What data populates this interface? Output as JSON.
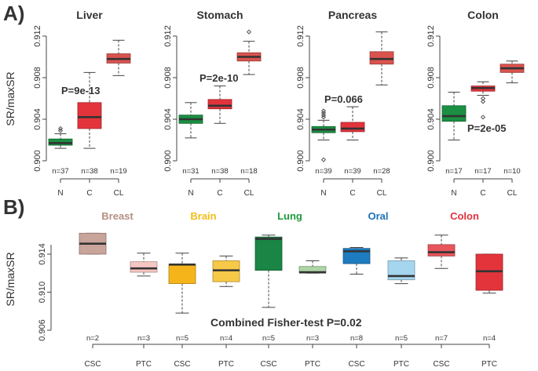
{
  "labels": {
    "panelA": "A)",
    "panelB": "B)",
    "ylabel": "SR/maxSR"
  },
  "colors": {
    "N": "#1b8f43",
    "C": "#e3343c",
    "CL": "#d9534f"
  },
  "chart_data": [
    {
      "type": "box",
      "panel": "A",
      "title": "Liver",
      "ylim": [
        0.9,
        0.914
      ],
      "yticks": [
        "0.900",
        "0.904",
        "0.908",
        "0.912"
      ],
      "pvalue": "P=9e-13",
      "categories": [
        "N",
        "C",
        "CL"
      ],
      "n_labels": [
        "n=37",
        "n=38",
        "n=19"
      ],
      "boxes": [
        {
          "min": 0.9012,
          "q1": 0.9015,
          "median": 0.9017,
          "q3": 0.9021,
          "max": 0.9026,
          "outliers": [
            0.9029,
            0.9031
          ]
        },
        {
          "min": 0.9012,
          "q1": 0.9031,
          "median": 0.9042,
          "q3": 0.9056,
          "max": 0.9085,
          "outliers": []
        },
        {
          "min": 0.9082,
          "q1": 0.9094,
          "median": 0.9098,
          "q3": 0.9103,
          "max": 0.9116,
          "outliers": []
        }
      ]
    },
    {
      "type": "box",
      "panel": "A",
      "title": "Stomach",
      "ylim": [
        0.9,
        0.914
      ],
      "yticks": [
        "0.900",
        "0.904",
        "0.908",
        "0.912"
      ],
      "pvalue": "P=2e-10",
      "categories": [
        "N",
        "C",
        "CL"
      ],
      "n_labels": [
        "n=31",
        "n=38",
        "n=18"
      ],
      "boxes": [
        {
          "min": 0.9022,
          "q1": 0.9036,
          "median": 0.904,
          "q3": 0.9044,
          "max": 0.9056,
          "outliers": []
        },
        {
          "min": 0.9036,
          "q1": 0.905,
          "median": 0.9053,
          "q3": 0.9059,
          "max": 0.9072,
          "outliers": []
        },
        {
          "min": 0.9083,
          "q1": 0.9096,
          "median": 0.91,
          "q3": 0.9104,
          "max": 0.9115,
          "outliers": [
            0.9124
          ]
        }
      ]
    },
    {
      "type": "box",
      "panel": "A",
      "title": "Pancreas",
      "ylim": [
        0.9,
        0.914
      ],
      "yticks": [
        "0.900",
        "0.904",
        "0.908",
        "0.912"
      ],
      "pvalue": "P=0.066",
      "categories": [
        "N",
        "C",
        "CL"
      ],
      "n_labels": [
        "n=39",
        "n=39",
        "n=28"
      ],
      "boxes": [
        {
          "min": 0.902,
          "q1": 0.9027,
          "median": 0.903,
          "q3": 0.9033,
          "max": 0.9039,
          "outliers": [
            0.9042,
            0.9044,
            0.9046,
            0.9048,
            0.9001
          ]
        },
        {
          "min": 0.902,
          "q1": 0.9028,
          "median": 0.9031,
          "q3": 0.9037,
          "max": 0.9052,
          "outliers": []
        },
        {
          "min": 0.9073,
          "q1": 0.9093,
          "median": 0.9098,
          "q3": 0.9105,
          "max": 0.9124,
          "outliers": []
        }
      ]
    },
    {
      "type": "box",
      "panel": "A",
      "title": "Colon",
      "ylim": [
        0.9,
        0.914
      ],
      "yticks": [
        "0.900",
        "0.904",
        "0.908",
        "0.912"
      ],
      "pvalue": "P=2e-05",
      "categories": [
        "N",
        "C",
        "CL"
      ],
      "n_labels": [
        "n=17",
        "n=17",
        "n=10"
      ],
      "boxes": [
        {
          "min": 0.902,
          "q1": 0.9038,
          "median": 0.9043,
          "q3": 0.9053,
          "max": 0.9066,
          "outliers": []
        },
        {
          "min": 0.9063,
          "q1": 0.9067,
          "median": 0.907,
          "q3": 0.9072,
          "max": 0.9076,
          "outliers": [
            0.906,
            0.9057,
            0.9042
          ]
        },
        {
          "min": 0.9075,
          "q1": 0.9085,
          "median": 0.9089,
          "q3": 0.9093,
          "max": 0.9096,
          "outliers": []
        }
      ]
    },
    {
      "type": "box",
      "panel": "B",
      "ylim": [
        0.906,
        0.9172
      ],
      "yticks": [
        "0.906",
        "0.910",
        "0.914"
      ],
      "annotation": "Combined Fisher-test P=0.02",
      "groups": [
        {
          "name": "Breast",
          "color": "#b58e84",
          "colors": [
            "#c9a49a",
            "#f6c6c2"
          ]
        },
        {
          "name": "Brain",
          "color": "#f2bd16",
          "colors": [
            "#f5b51a",
            "#f7c948"
          ]
        },
        {
          "name": "Lung",
          "color": "#1f9a3c",
          "colors": [
            "#1a8545",
            "#acd5a5"
          ]
        },
        {
          "name": "Oral",
          "color": "#1b72b8",
          "colors": [
            "#1d7bbf",
            "#a6d6ef"
          ]
        },
        {
          "name": "Colon",
          "color": "#e2333d",
          "colors": [
            "#e8555c",
            "#e3343c"
          ]
        }
      ],
      "categories": [
        "CSC",
        "PTC",
        "CSC",
        "PTC",
        "CSC",
        "PTC",
        "CSC",
        "PTC",
        "CSC",
        "PTC"
      ],
      "n_labels": [
        "n=2",
        "n=3",
        "n=5",
        "n=4",
        "n=5",
        "n=3",
        "n=8",
        "n=5",
        "n=7",
        "n=4"
      ],
      "boxes": [
        {
          "min": 0.914,
          "q1": 0.914,
          "median": 0.9151,
          "q3": 0.9162,
          "max": 0.9162
        },
        {
          "min": 0.9117,
          "q1": 0.9121,
          "median": 0.9125,
          "q3": 0.9132,
          "max": 0.9141
        },
        {
          "min": 0.9078,
          "q1": 0.9109,
          "median": 0.9129,
          "q3": 0.9129,
          "max": 0.9141
        },
        {
          "min": 0.9106,
          "q1": 0.9111,
          "median": 0.9123,
          "q3": 0.9133,
          "max": 0.9138
        },
        {
          "min": 0.9084,
          "q1": 0.9123,
          "median": 0.9156,
          "q3": 0.9158,
          "max": 0.916
        },
        {
          "min": 0.912,
          "q1": 0.912,
          "median": 0.9121,
          "q3": 0.9127,
          "max": 0.9133
        },
        {
          "min": 0.9119,
          "q1": 0.913,
          "median": 0.9143,
          "q3": 0.9146,
          "max": 0.9147
        },
        {
          "min": 0.9109,
          "q1": 0.9113,
          "median": 0.9117,
          "q3": 0.9133,
          "max": 0.9136
        },
        {
          "min": 0.9125,
          "q1": 0.9138,
          "median": 0.9142,
          "q3": 0.915,
          "max": 0.916
        },
        {
          "min": 0.9099,
          "q1": 0.9102,
          "median": 0.9122,
          "q3": 0.914,
          "max": 0.914
        }
      ]
    }
  ]
}
